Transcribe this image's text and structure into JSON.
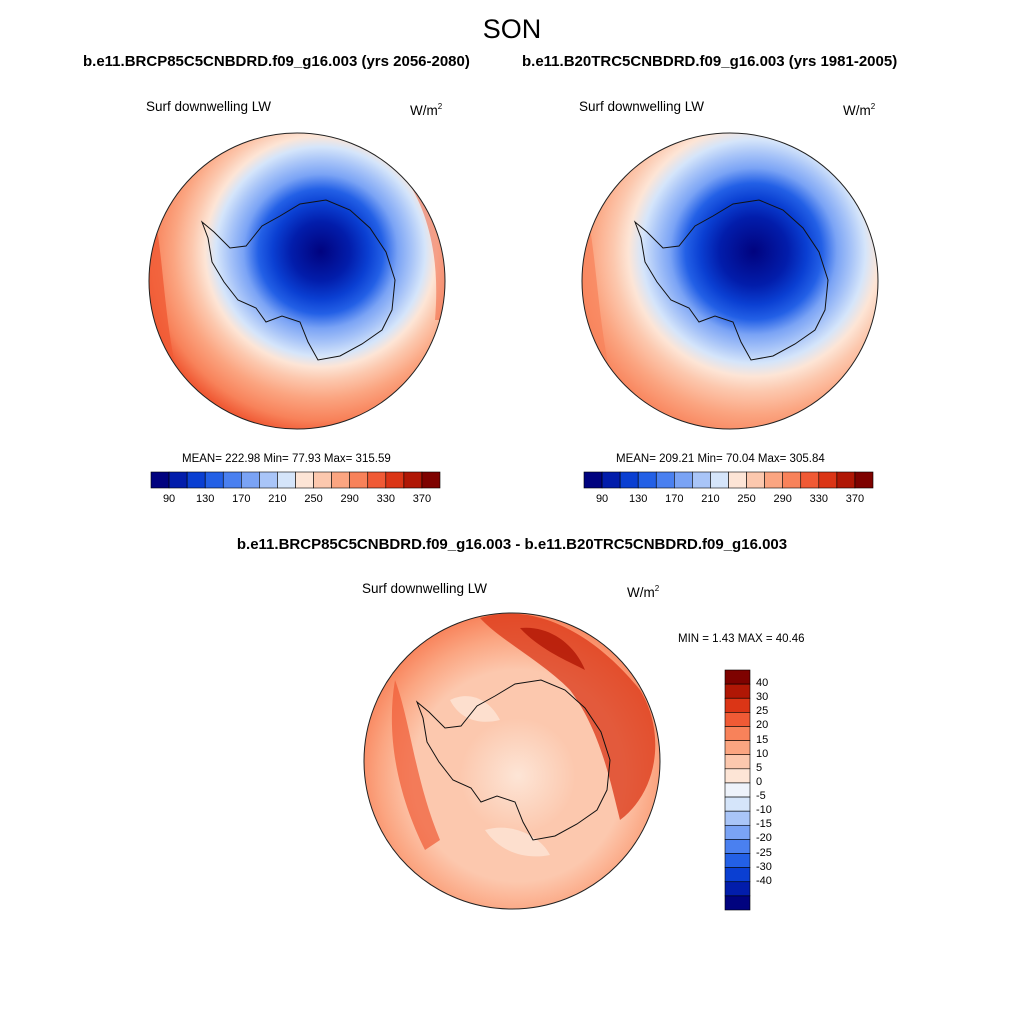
{
  "figure": {
    "season": "SON",
    "left_case": "b.e11.BRCP85C5CNBDRD.f09_g16.003 (yrs 2056-2080)",
    "right_case": "b.e11.B20TRC5CNBDRD.f09_g16.003 (yrs 1981-2005)",
    "diff_title": "b.e11.BRCP85C5CNBDRD.f09_g16.003 - b.e11.B20TRC5CNBDRD.f09_g16.003"
  },
  "panels": {
    "left": {
      "variable": "Surf downwelling LW",
      "units_base": "W/m",
      "units_exp": "2",
      "stats": "MEAN= 222.98  Min=  77.93  Max= 315.59"
    },
    "right": {
      "variable": "Surf downwelling LW",
      "units_base": "W/m",
      "units_exp": "2",
      "stats": "MEAN= 209.21  Min=  70.04  Max= 305.84"
    },
    "diff": {
      "variable": "Surf downwelling LW",
      "units_base": "W/m",
      "units_exp": "2",
      "stats": "MIN =   1.43 MAX =  40.46"
    }
  },
  "colorbars": {
    "main": {
      "colors": [
        "#01037f",
        "#021dab",
        "#0a3fd2",
        "#2360e6",
        "#4a80f0",
        "#7aa3f5",
        "#a9c5f8",
        "#d5e5fa",
        "#fde5d6",
        "#fcc8ae",
        "#fba581",
        "#f8825a",
        "#f05a35",
        "#db3516",
        "#b01705",
        "#7e0200"
      ],
      "labels": [
        "90",
        "130",
        "170",
        "210",
        "250",
        "290",
        "330",
        "370"
      ]
    },
    "diff": {
      "colors": [
        "#7e0200",
        "#b01705",
        "#db3516",
        "#f05a35",
        "#f8825a",
        "#fba581",
        "#fcc8ae",
        "#fde5d6",
        "#eef3fb",
        "#d5e5fa",
        "#a9c5f8",
        "#7aa3f5",
        "#4a80f0",
        "#2360e6",
        "#0a3fd2",
        "#021dab",
        "#01037f"
      ],
      "labels": [
        "40",
        "30",
        "25",
        "20",
        "15",
        "10",
        "5",
        "0",
        "-5",
        "-10",
        "-15",
        "-20",
        "-25",
        "-30",
        "-40"
      ]
    }
  }
}
